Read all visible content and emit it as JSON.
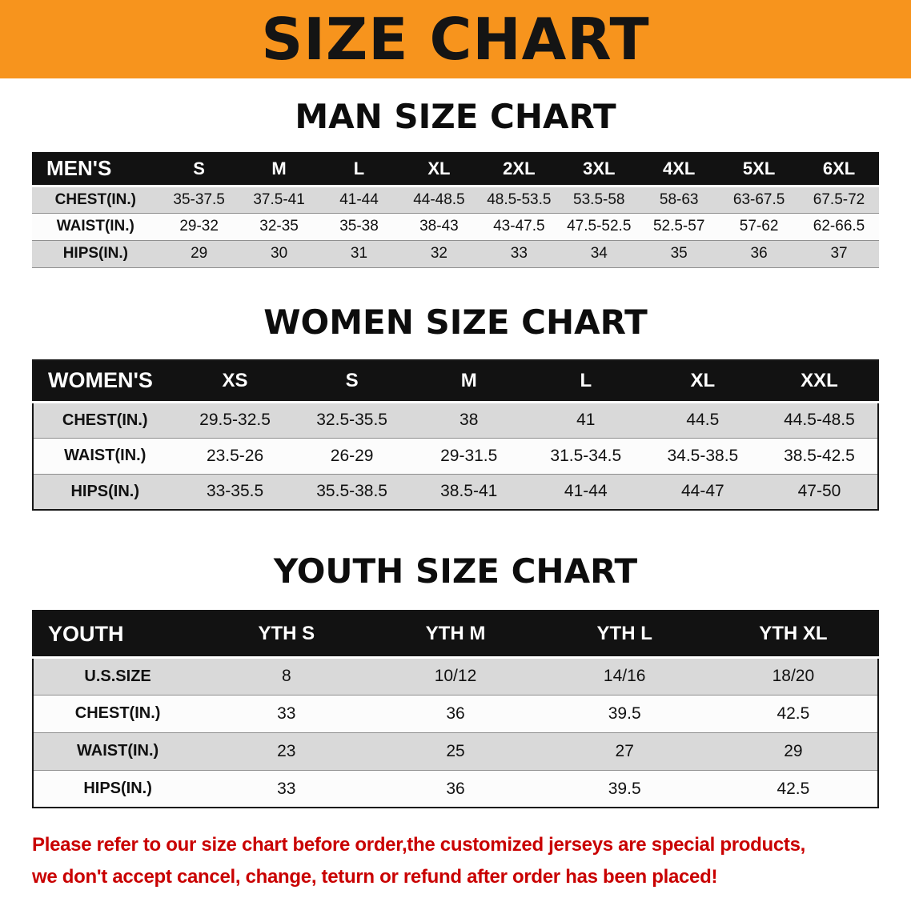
{
  "banner": {
    "title": "SIZE CHART"
  },
  "colors": {
    "banner_bg": "#F7941D",
    "banner_text": "#141414",
    "header_bg": "#121212",
    "header_text": "#ffffff",
    "stripe": "#d9d9d9",
    "row_white": "#fcfcfc",
    "table_border": "#161616",
    "disclaimer": "#C90000"
  },
  "sections": {
    "men": {
      "heading": "MAN SIZE CHART",
      "table": {
        "header": [
          "MEN'S",
          "S",
          "M",
          "L",
          "XL",
          "2XL",
          "3XL",
          "4XL",
          "5XL",
          "6XL"
        ],
        "rows": [
          {
            "label": "CHEST(IN.)",
            "values": [
              "35-37.5",
              "37.5-41",
              "41-44",
              "44-48.5",
              "48.5-53.5",
              "53.5-58",
              "58-63",
              "63-67.5",
              "67.5-72"
            ]
          },
          {
            "label": "WAIST(IN.)",
            "values": [
              "29-32",
              "32-35",
              "35-38",
              "38-43",
              "43-47.5",
              "47.5-52.5",
              "52.5-57",
              "57-62",
              "62-66.5"
            ]
          },
          {
            "label": "HIPS(IN.)",
            "values": [
              "29",
              "30",
              "31",
              "32",
              "33",
              "34",
              "35",
              "36",
              "37"
            ]
          }
        ]
      }
    },
    "women": {
      "heading": "WOMEN SIZE CHART",
      "table": {
        "header": [
          "WOMEN'S",
          "XS",
          "S",
          "M",
          "L",
          "XL",
          "XXL"
        ],
        "rows": [
          {
            "label": "CHEST(IN.)",
            "values": [
              "29.5-32.5",
              "32.5-35.5",
              "38",
              "41",
              "44.5",
              "44.5-48.5"
            ]
          },
          {
            "label": "WAIST(IN.)",
            "values": [
              "23.5-26",
              "26-29",
              "29-31.5",
              "31.5-34.5",
              "34.5-38.5",
              "38.5-42.5"
            ]
          },
          {
            "label": "HIPS(IN.)",
            "values": [
              "33-35.5",
              "35.5-38.5",
              "38.5-41",
              "41-44",
              "44-47",
              "47-50"
            ]
          }
        ]
      }
    },
    "youth": {
      "heading": "YOUTH SIZE CHART",
      "table": {
        "header": [
          "YOUTH",
          "YTH S",
          "YTH M",
          "YTH L",
          "YTH XL"
        ],
        "rows": [
          {
            "label": "U.S.SIZE",
            "values": [
              "8",
              "10/12",
              "14/16",
              "18/20"
            ]
          },
          {
            "label": "CHEST(IN.)",
            "values": [
              "33",
              "36",
              "39.5",
              "42.5"
            ]
          },
          {
            "label": "WAIST(IN.)",
            "values": [
              "23",
              "25",
              "27",
              "29"
            ]
          },
          {
            "label": "HIPS(IN.)",
            "values": [
              "33",
              "36",
              "39.5",
              "42.5"
            ]
          }
        ]
      }
    }
  },
  "disclaimer": {
    "line1": "Please refer to our size chart before order,the customized jerseys are special products,",
    "line2": "we don't accept cancel, change, teturn or refund after order has been placed!"
  }
}
